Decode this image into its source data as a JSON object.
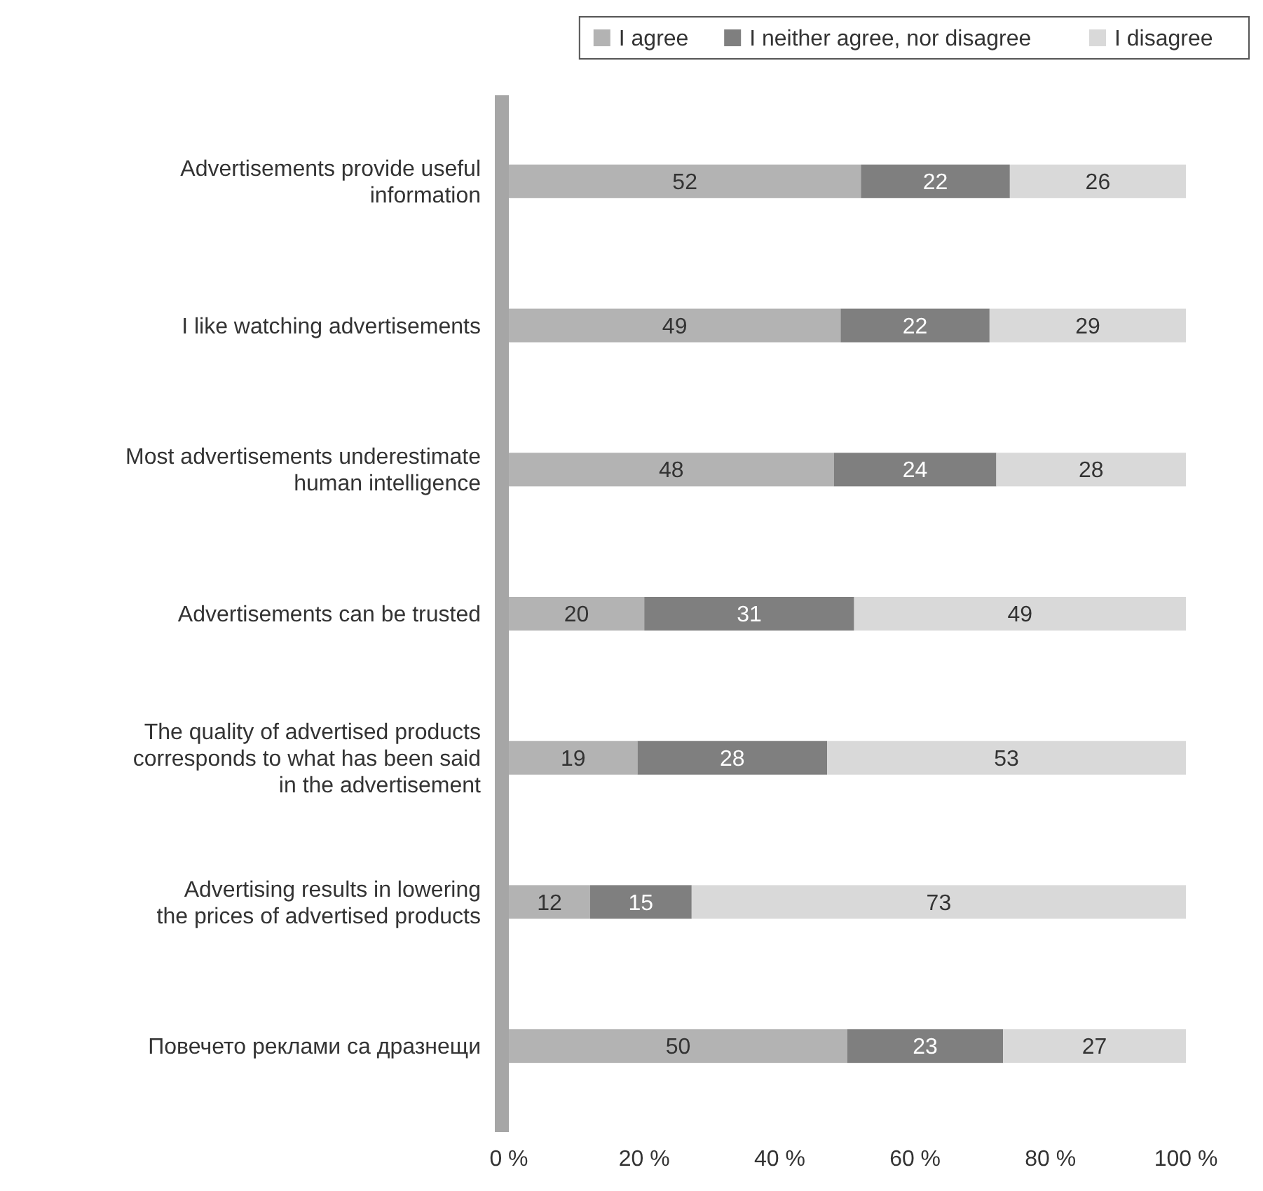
{
  "chart_data": {
    "type": "bar",
    "orientation": "horizontal",
    "stacked": true,
    "data_labels": true,
    "legend": "top right",
    "xlim": [
      0,
      100
    ],
    "xticks": [
      {
        "value": 0,
        "label": "0 %"
      },
      {
        "value": 20,
        "label": "20 %"
      },
      {
        "value": 40,
        "label": "40 %"
      },
      {
        "value": 60,
        "label": "60 %"
      },
      {
        "value": 80,
        "label": "80 %"
      },
      {
        "value": 100,
        "label": "100 %"
      }
    ],
    "categories": [
      "Advertisements provide useful information",
      "I like watching advertisements",
      "Most advertisements underestimate human intelligence",
      "Advertisements can be trusted",
      "The quality of advertised products corresponds to what has been said in the advertisement",
      "Advertising results in lowering the prices of advertised products",
      "Повечето реклами са дразнещи"
    ],
    "series": [
      {
        "name": "I agree",
        "color": "#b3b3b3",
        "values": [
          52,
          49,
          48,
          20,
          19,
          12,
          50
        ]
      },
      {
        "name": "I neither agree, nor disagree",
        "color": "#7f7f7f",
        "values": [
          22,
          22,
          24,
          31,
          28,
          15,
          23
        ]
      },
      {
        "name": "I disagree",
        "color": "#d9d9d9",
        "values": [
          26,
          29,
          28,
          49,
          53,
          73,
          27
        ]
      }
    ]
  }
}
